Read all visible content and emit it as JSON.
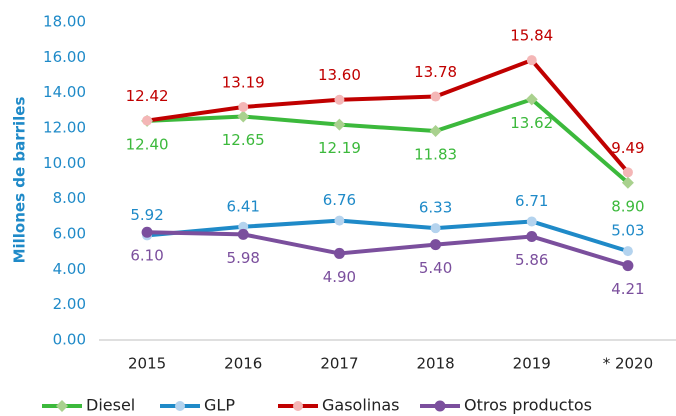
{
  "chart_data": {
    "type": "line",
    "y_axis_label": "Millones de barriles",
    "categories": [
      "2015",
      "2016",
      "2017",
      "2018",
      "2019",
      "* 2020"
    ],
    "ylim": [
      0,
      18
    ],
    "yticks": [
      {
        "value": 0,
        "label": "0.00"
      },
      {
        "value": 2,
        "label": "2.00"
      },
      {
        "value": 4,
        "label": "4.00"
      },
      {
        "value": 6,
        "label": "6.00"
      },
      {
        "value": 8,
        "label": "8.00"
      },
      {
        "value": 10,
        "label": "10.00"
      },
      {
        "value": 12,
        "label": "12.00"
      },
      {
        "value": 14,
        "label": "14.00"
      },
      {
        "value": 16,
        "label": "16.00"
      },
      {
        "value": 18,
        "label": "18.00"
      }
    ],
    "grid": false,
    "legend": "bottom",
    "series": [
      {
        "name": "Diesel",
        "color": "#3cb93c",
        "marker_color": "#a9d18e",
        "marker": "diamond",
        "values": [
          12.4,
          12.65,
          12.19,
          11.83,
          13.62,
          8.9
        ],
        "value_labels": [
          "12.40",
          "12.65",
          "12.19",
          "11.83",
          "13.62",
          "8.90"
        ]
      },
      {
        "name": "GLP",
        "color": "#1f8ac8",
        "marker_color": "#b4d3ee",
        "marker": "circle",
        "values": [
          5.92,
          6.41,
          6.76,
          6.33,
          6.71,
          5.03
        ],
        "value_labels": [
          "5.92",
          "6.41",
          "6.76",
          "6.33",
          "6.71",
          "5.03"
        ]
      },
      {
        "name": "Gasolinas",
        "color": "#c00000",
        "marker_color": "#f4b6b6",
        "marker": "circle",
        "values": [
          12.42,
          13.19,
          13.6,
          13.78,
          15.84,
          9.49
        ],
        "value_labels": [
          "12.42",
          "13.19",
          "13.60",
          "13.78",
          "15.84",
          "9.49"
        ]
      },
      {
        "name": "Otros productos",
        "color": "#7b4f9d",
        "marker_color": "#7b4f9d",
        "marker": "circle",
        "values": [
          6.1,
          5.98,
          4.9,
          5.4,
          5.86,
          4.21
        ],
        "value_labels": [
          "6.10",
          "5.98",
          "4.90",
          "5.40",
          "5.86",
          "4.21"
        ]
      }
    ]
  }
}
